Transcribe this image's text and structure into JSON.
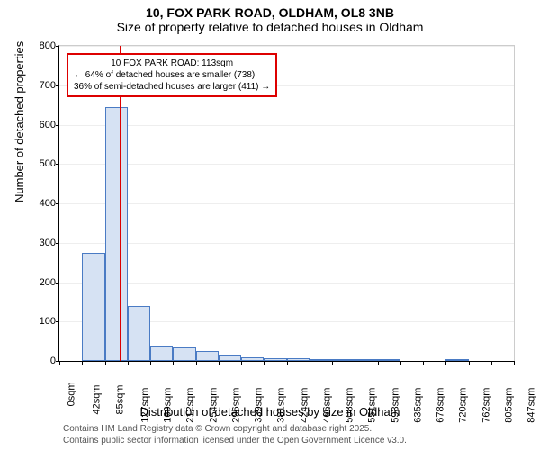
{
  "title_line1": "10, FOX PARK ROAD, OLDHAM, OL8 3NB",
  "title_line2": "Size of property relative to detached houses in Oldham",
  "chart": {
    "type": "histogram",
    "ylabel": "Number of detached properties",
    "xlabel": "Distribution of detached houses by size in Oldham",
    "ylim": [
      0,
      800
    ],
    "ytick_step": 100,
    "xtick_labels": [
      "0sqm",
      "42sqm",
      "85sqm",
      "127sqm",
      "169sqm",
      "212sqm",
      "254sqm",
      "296sqm",
      "339sqm",
      "381sqm",
      "424sqm",
      "466sqm",
      "508sqm",
      "551sqm",
      "593sqm",
      "635sqm",
      "678sqm",
      "720sqm",
      "762sqm",
      "805sqm",
      "847sqm"
    ],
    "bar_heights": [
      0,
      275,
      645,
      140,
      40,
      35,
      25,
      15,
      10,
      8,
      6,
      4,
      2,
      1,
      1,
      0,
      0,
      1,
      0,
      0
    ],
    "bar_fill": "#d6e2f3",
    "bar_border": "#4a7bc4",
    "grid_color": "#eeeeee",
    "highlight_value_sqm": 113,
    "highlight_color": "#dd0000",
    "callout_line1": "10 FOX PARK ROAD: 113sqm",
    "callout_line2": "← 64% of detached houses are smaller (738)",
    "callout_line3": "36% of semi-detached houses are larger (411) →",
    "x_max_sqm": 847
  },
  "footer_line1": "Contains HM Land Registry data © Crown copyright and database right 2025.",
  "footer_line2": "Contains public sector information licensed under the Open Government Licence v3.0."
}
